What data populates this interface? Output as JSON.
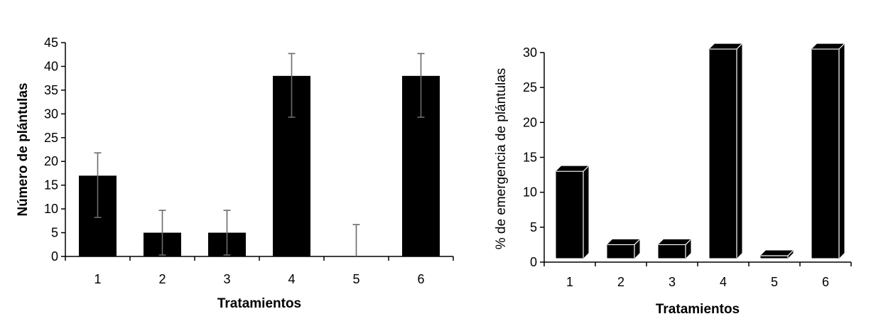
{
  "chart_data": [
    {
      "type": "bar",
      "categories": [
        "1",
        "2",
        "3",
        "4",
        "5",
        "6"
      ],
      "values": [
        17,
        5,
        5,
        38,
        0,
        38
      ],
      "error_low": [
        8.2,
        0.3,
        0.3,
        29.3,
        0,
        29.3
      ],
      "error_high": [
        21.8,
        9.7,
        9.7,
        42.7,
        6.7,
        42.7
      ],
      "xlabel": "Tratamientos",
      "ylabel": "Número de plántulas",
      "ylim": [
        0,
        45
      ],
      "yticks": [
        "0",
        "5",
        "10",
        "15",
        "20",
        "25",
        "30",
        "35",
        "40",
        "45"
      ],
      "color": "#000000",
      "grid": false
    },
    {
      "type": "bar",
      "style": "3d",
      "categories": [
        "1",
        "2",
        "3",
        "4",
        "5",
        "6"
      ],
      "values": [
        13,
        2.5,
        2.5,
        30.5,
        0,
        30.5
      ],
      "xlabel": "Tratamientos",
      "ylabel": "% de emergencia de plántulas",
      "ylim": [
        0,
        30
      ],
      "yticks": [
        "0",
        "5",
        "10",
        "15",
        "20",
        "25",
        "30"
      ],
      "color": "#000000",
      "grid": false
    }
  ]
}
